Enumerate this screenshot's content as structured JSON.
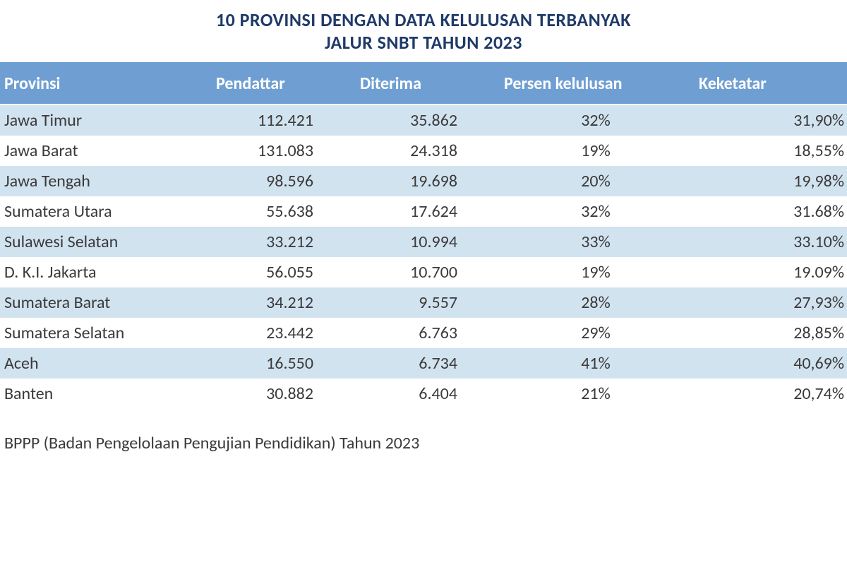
{
  "title": {
    "line1": "10 PROVINSI DENGAN DATA KELULUSAN  TERBANYAK",
    "line2": "JALUR SNBT TAHUN 2023",
    "color": "#1f3a68",
    "fontsize": 26
  },
  "table": {
    "type": "table",
    "header_bg": "#6f9fd2",
    "header_color": "#ffffff",
    "row_odd_bg": "#d2e3f0",
    "row_even_bg": "#ffffff",
    "text_color": "#3a3a3a",
    "fontsize": 24,
    "columns": [
      {
        "key": "provinsi",
        "label": "Provinsi",
        "width": "25%",
        "align": "left"
      },
      {
        "key": "pendaftar",
        "label": "Pendattar",
        "width": "17%",
        "align": "right"
      },
      {
        "key": "diterima",
        "label": "Diterima",
        "width": "17%",
        "align": "right"
      },
      {
        "key": "persen",
        "label": "Persen kelulusan",
        "width": "23%",
        "align": "center"
      },
      {
        "key": "keketatan",
        "label": "Keketatar",
        "width": "18%",
        "align": "right"
      }
    ],
    "rows": [
      {
        "provinsi": "Jawa Timur",
        "pendaftar": "112.421",
        "diterima": "35.862",
        "persen": "32%",
        "keketatan": "31,90%"
      },
      {
        "provinsi": "Jawa Barat",
        "pendaftar": "131.083",
        "diterima": "24.318",
        "persen": "19%",
        "keketatan": "18,55%"
      },
      {
        "provinsi": "Jawa Tengah",
        "pendaftar": "98.596",
        "diterima": "19.698",
        "persen": "20%",
        "keketatan": "19,98%"
      },
      {
        "provinsi": "Sumatera Utara",
        "pendaftar": "55.638",
        "diterima": "17.624",
        "persen": "32%",
        "keketatan": "31.68%"
      },
      {
        "provinsi": "Sulawesi Selatan",
        "pendaftar": "33.212",
        "diterima": "10.994",
        "persen": "33%",
        "keketatan": "33.10%"
      },
      {
        "provinsi": "D. K.I. Jakarta",
        "pendaftar": "56.055",
        "diterima": "10.700",
        "persen": "19%",
        "keketatan": "19.09%"
      },
      {
        "provinsi": "Sumatera Barat",
        "pendaftar": "34.212",
        "diterima": "9.557",
        "persen": "28%",
        "keketatan": "27,93%"
      },
      {
        "provinsi": "Sumatera Selatan",
        "pendaftar": "23.442",
        "diterima": "6.763",
        "persen": "29%",
        "keketatan": "28,85%"
      },
      {
        "provinsi": "Aceh",
        "pendaftar": "16.550",
        "diterima": "6.734",
        "persen": "41%",
        "keketatan": "40,69%"
      },
      {
        "provinsi": "Banten",
        "pendaftar": "30.882",
        "diterima": "6.404",
        "persen": "21%",
        "keketatan": "20,74%"
      }
    ]
  },
  "footer": {
    "text": "BPPP (Badan Pengelolaan Pengujian Pendidikan) Tahun 2023",
    "color": "#3a3a3a",
    "fontsize": 24
  }
}
